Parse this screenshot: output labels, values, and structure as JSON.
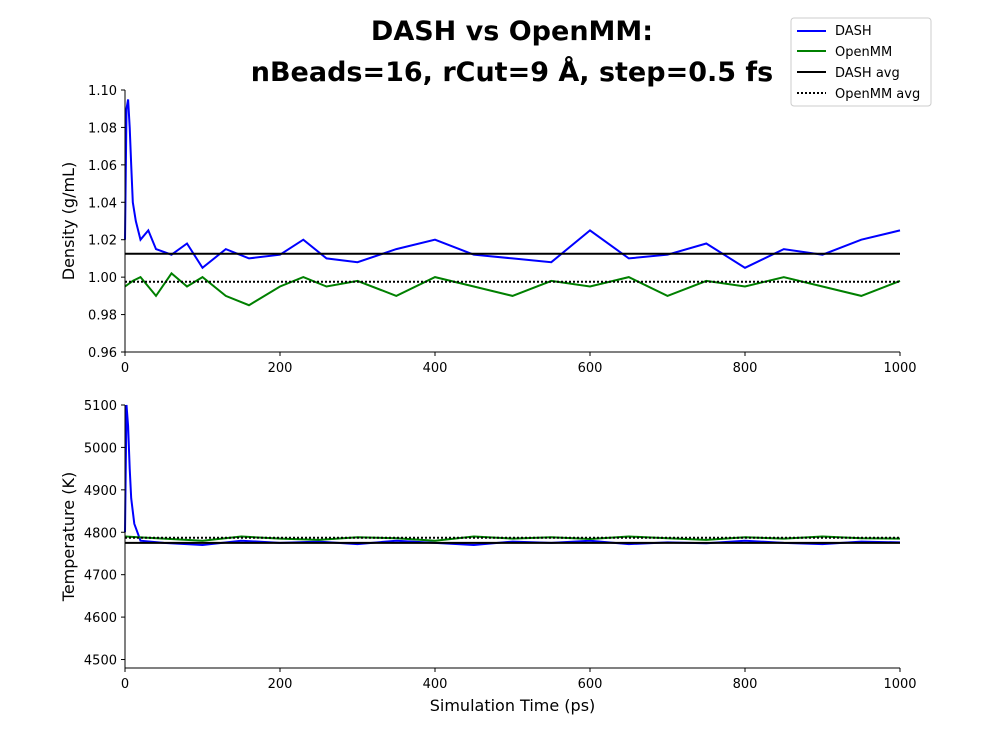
{
  "figure": {
    "title_line1": "DASH vs OpenMM:",
    "title_line2": "nBeads=16, rCut=9 Å, step=0.5 fs"
  },
  "legend": {
    "placement": "top-right",
    "entries": [
      {
        "label": "DASH",
        "color": "#0000ff",
        "style": "solid"
      },
      {
        "label": "OpenMM",
        "color": "#008000",
        "style": "solid"
      },
      {
        "label": "DASH avg",
        "color": "#000000",
        "style": "solid"
      },
      {
        "label": "OpenMM avg",
        "color": "#000000",
        "style": "dotted"
      }
    ]
  },
  "chart_data": [
    {
      "type": "line",
      "panel": "top",
      "title": "",
      "xlabel": "",
      "ylabel": "Density (g/mL)",
      "xlim": [
        0,
        1000
      ],
      "ylim": [
        0.96,
        1.1
      ],
      "xticks": [
        "0",
        "200",
        "400",
        "600",
        "800",
        "1000"
      ],
      "yticks": [
        "0.96",
        "0.98",
        "1.00",
        "1.02",
        "1.04",
        "1.06",
        "1.08",
        "1.10"
      ],
      "grid": false,
      "series": [
        {
          "name": "DASH",
          "color": "#0000ff",
          "x": [
            0,
            2,
            4,
            6,
            8,
            10,
            14,
            20,
            30,
            40,
            60,
            80,
            100,
            130,
            160,
            200,
            230,
            260,
            300,
            350,
            400,
            450,
            500,
            550,
            600,
            650,
            700,
            750,
            800,
            850,
            900,
            950,
            1000
          ],
          "y": [
            1.02,
            1.09,
            1.095,
            1.08,
            1.06,
            1.04,
            1.03,
            1.02,
            1.025,
            1.015,
            1.012,
            1.018,
            1.005,
            1.015,
            1.01,
            1.012,
            1.02,
            1.01,
            1.008,
            1.015,
            1.02,
            1.012,
            1.01,
            1.008,
            1.025,
            1.01,
            1.012,
            1.018,
            1.005,
            1.015,
            1.012,
            1.02,
            1.025
          ]
        },
        {
          "name": "OpenMM",
          "color": "#008000",
          "x": [
            0,
            10,
            20,
            40,
            60,
            80,
            100,
            130,
            160,
            200,
            230,
            260,
            300,
            350,
            400,
            450,
            500,
            550,
            600,
            650,
            700,
            750,
            800,
            850,
            900,
            950,
            1000
          ],
          "y": [
            0.995,
            0.998,
            1.0,
            0.99,
            1.002,
            0.995,
            1.0,
            0.99,
            0.985,
            0.995,
            1.0,
            0.995,
            0.998,
            0.99,
            1.0,
            0.995,
            0.99,
            0.998,
            0.995,
            1.0,
            0.99,
            0.998,
            0.995,
            1.0,
            0.995,
            0.99,
            0.998
          ]
        },
        {
          "name": "DASH avg",
          "color": "#000000",
          "x": [
            0,
            1000
          ],
          "y": [
            1.0125,
            1.0125
          ]
        },
        {
          "name": "OpenMM avg",
          "color": "#000000",
          "x": [
            0,
            1000
          ],
          "y": [
            0.9975,
            0.9975
          ]
        }
      ]
    },
    {
      "type": "line",
      "panel": "bottom",
      "title": "",
      "xlabel": "Simulation Time (ps)",
      "ylabel": "Temperature (K)",
      "xlim": [
        0,
        1000
      ],
      "ylim": [
        4480,
        5100
      ],
      "xticks": [
        "0",
        "200",
        "400",
        "600",
        "800",
        "1000"
      ],
      "yticks": [
        "4500",
        "4600",
        "4700",
        "4800",
        "4900",
        "5000",
        "5100"
      ],
      "grid": false,
      "series": [
        {
          "name": "DASH",
          "color": "#0000ff",
          "x": [
            0,
            2,
            4,
            6,
            8,
            12,
            20,
            50,
            100,
            150,
            200,
            250,
            300,
            350,
            400,
            450,
            500,
            550,
            600,
            650,
            700,
            750,
            800,
            850,
            900,
            950,
            1000
          ],
          "y": [
            4800,
            5100,
            5050,
            4950,
            4880,
            4820,
            4780,
            4775,
            4770,
            4780,
            4775,
            4778,
            4772,
            4780,
            4775,
            4770,
            4778,
            4775,
            4780,
            4772,
            4776,
            4774,
            4780,
            4775,
            4772,
            4778,
            4776
          ]
        },
        {
          "name": "OpenMM",
          "color": "#008000",
          "x": [
            0,
            50,
            100,
            150,
            200,
            250,
            300,
            350,
            400,
            450,
            500,
            550,
            600,
            650,
            700,
            750,
            800,
            850,
            900,
            950,
            1000
          ],
          "y": [
            4790,
            4785,
            4780,
            4790,
            4785,
            4782,
            4788,
            4786,
            4780,
            4790,
            4785,
            4788,
            4784,
            4790,
            4786,
            4782,
            4788,
            4785,
            4790,
            4786,
            4785
          ]
        },
        {
          "name": "DASH avg",
          "color": "#000000",
          "x": [
            0,
            1000
          ],
          "y": [
            4775,
            4775
          ]
        },
        {
          "name": "OpenMM avg",
          "color": "#000000",
          "x": [
            0,
            1000
          ],
          "y": [
            4787,
            4787
          ]
        }
      ]
    }
  ]
}
